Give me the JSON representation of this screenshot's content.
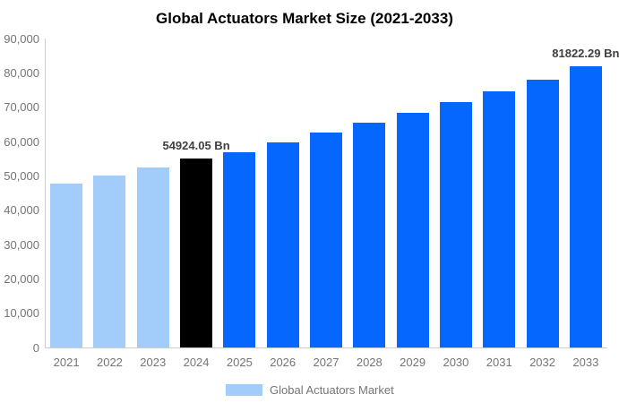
{
  "title": "Global Actuators Market Size (2021-2033)",
  "legend": {
    "label": "Global Actuators Market"
  },
  "colors": {
    "historical": "#a2cdfa",
    "highlight": "#000000",
    "forecast": "#0667ff",
    "axis_line": "#cccccc",
    "tick_text": "#757575",
    "annotation_text": "#404040",
    "title_text": "#000000",
    "background": "#ffffff"
  },
  "chart_data": {
    "type": "bar",
    "title": "Global Actuators Market Size (2021-2033)",
    "xlabel": "",
    "ylabel": "",
    "unit": "Bn",
    "categories": [
      "2021",
      "2022",
      "2023",
      "2024",
      "2025",
      "2026",
      "2027",
      "2028",
      "2029",
      "2030",
      "2031",
      "2032",
      "2033"
    ],
    "series": [
      {
        "name": "Global Actuators Market",
        "values": [
          47800,
          50200,
          52400,
          54924.05,
          57000,
          59800,
          62500,
          65400,
          68300,
          71500,
          74700,
          78100,
          81822.29
        ]
      }
    ],
    "bar_roles": [
      "historical",
      "historical",
      "historical",
      "highlight",
      "forecast",
      "forecast",
      "forecast",
      "forecast",
      "forecast",
      "forecast",
      "forecast",
      "forecast",
      "forecast"
    ],
    "annotations": {
      "2024": "54924.05 Bn",
      "2033": "81822.29 Bn"
    },
    "ylim": [
      0,
      90000
    ],
    "y_ticks": [
      "0",
      "10,000",
      "20,000",
      "30,000",
      "40,000",
      "50,000",
      "60,000",
      "70,000",
      "80,000",
      "90,000"
    ],
    "grid": false,
    "legend_position": "bottom"
  }
}
